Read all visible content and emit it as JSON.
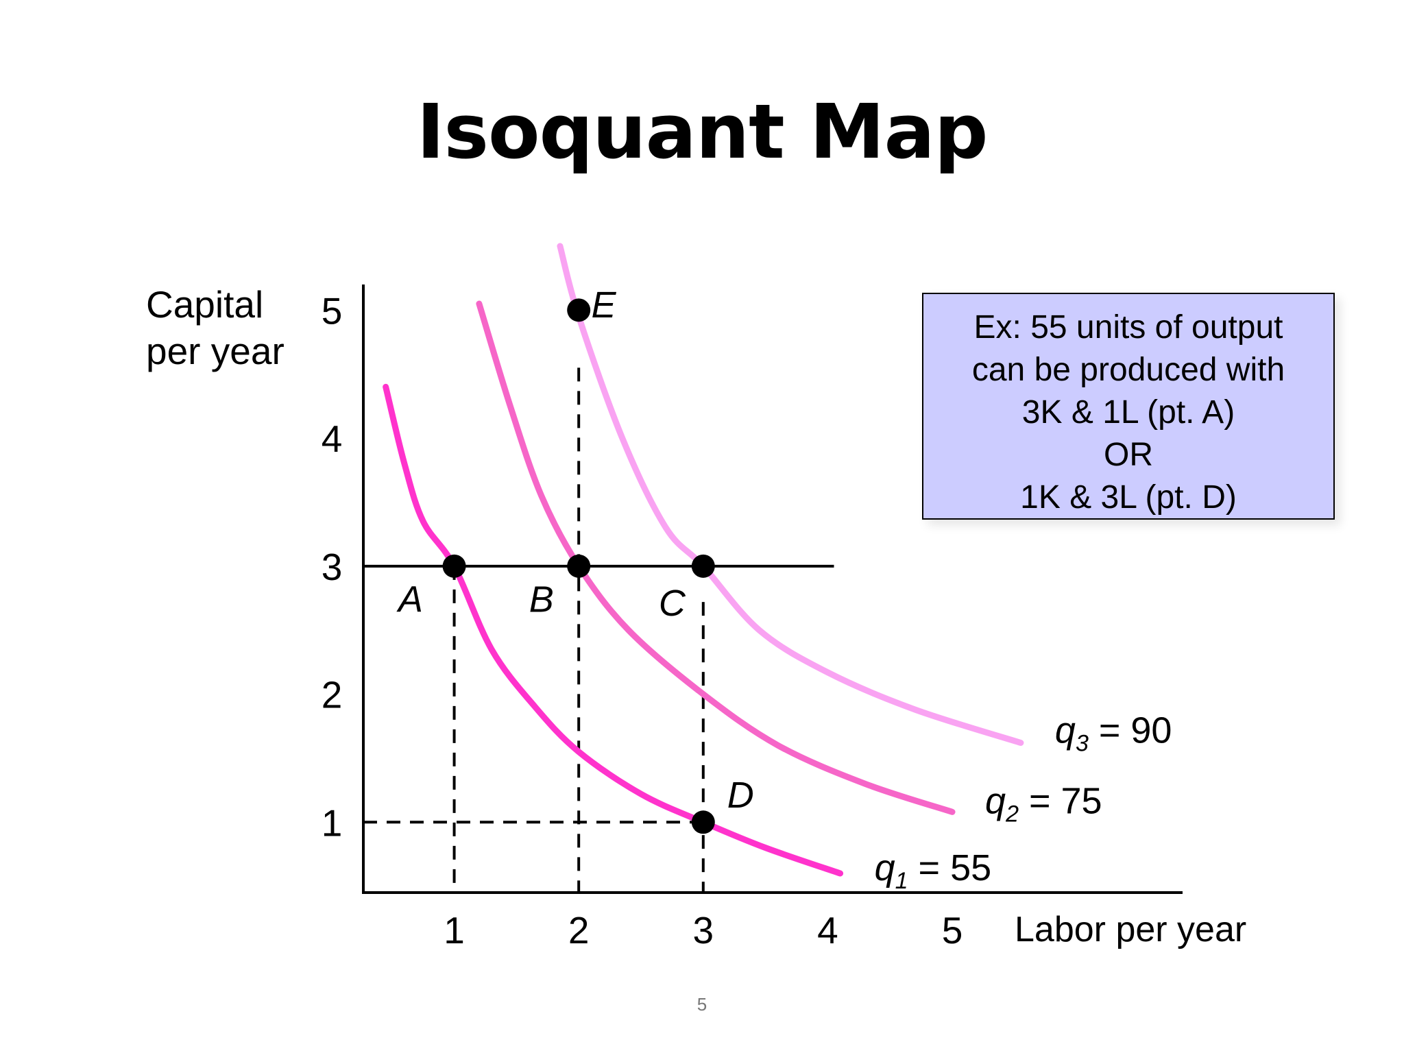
{
  "slide": {
    "title": "Isoquant Map",
    "page_number": "5",
    "note_lines": [
      "Ex: 55 units of output",
      "can be produced with",
      "3K & 1L (pt. A)",
      "OR",
      "1K & 3L (pt. D)"
    ]
  },
  "chart_data": {
    "type": "line",
    "title": "Isoquant Map",
    "xlabel": "Labor per year",
    "ylabel_lines": [
      "Capital",
      "per year"
    ],
    "xlim": [
      0.27,
      6.85
    ],
    "ylim": [
      0.45,
      5.2
    ],
    "x_ticks": [
      1,
      2,
      3,
      4,
      5
    ],
    "y_ticks": [
      1,
      2,
      3,
      4,
      5
    ],
    "grid": false,
    "legend": "inline labels at right end of each curve",
    "series": [
      {
        "name": "q1 = 55",
        "label_var": "q",
        "label_sub": "1",
        "label_rest": " = 55",
        "color": "#ff33cc",
        "points": [
          [
            0.45,
            4.4
          ],
          [
            0.6,
            3.8
          ],
          [
            0.75,
            3.35
          ],
          [
            1.0,
            3.0
          ],
          [
            1.3,
            2.35
          ],
          [
            1.65,
            1.9
          ],
          [
            2.0,
            1.55
          ],
          [
            2.5,
            1.22
          ],
          [
            3.0,
            1.0
          ],
          [
            3.5,
            0.8
          ],
          [
            4.1,
            0.6
          ]
        ]
      },
      {
        "name": "q2 = 75",
        "label_var": "q",
        "label_sub": "2",
        "label_rest": " = 75",
        "color": "#f666c8",
        "points": [
          [
            1.2,
            5.05
          ],
          [
            1.45,
            4.25
          ],
          [
            1.7,
            3.55
          ],
          [
            2.0,
            3.0
          ],
          [
            2.4,
            2.5
          ],
          [
            3.0,
            2.0
          ],
          [
            3.6,
            1.6
          ],
          [
            4.3,
            1.3
          ],
          [
            5.0,
            1.08
          ]
        ]
      },
      {
        "name": "q3 = 90",
        "label_var": "q",
        "label_sub": "3",
        "label_rest": " = 90",
        "color": "#f9a3f2",
        "points": [
          [
            1.85,
            5.5
          ],
          [
            2.0,
            4.95
          ],
          [
            2.35,
            4.0
          ],
          [
            2.7,
            3.3
          ],
          [
            3.0,
            3.0
          ],
          [
            3.45,
            2.5
          ],
          [
            4.0,
            2.17
          ],
          [
            4.7,
            1.88
          ],
          [
            5.55,
            1.62
          ]
        ]
      }
    ],
    "points": [
      {
        "label": "A",
        "x": 1,
        "y": 3,
        "lx": 0.65,
        "ly": 2.75
      },
      {
        "label": "B",
        "x": 2,
        "y": 3,
        "lx": 1.7,
        "ly": 2.75
      },
      {
        "label": "C",
        "x": 3,
        "y": 3,
        "lx": 2.75,
        "ly": 2.72
      },
      {
        "label": "D",
        "x": 3,
        "y": 1,
        "lx": 3.3,
        "ly": 1.22
      },
      {
        "label": "E",
        "x": 2,
        "y": 5,
        "lx": 2.2,
        "ly": 5.05
      }
    ],
    "reference_lines": {
      "horizontal_solid": {
        "y": 3,
        "x_from": 0,
        "x_to": 4.05
      },
      "dashed": [
        {
          "from": [
            1,
            3
          ],
          "to": [
            1,
            0.45
          ]
        },
        {
          "from": [
            2,
            4.55
          ],
          "to": [
            2,
            0.45
          ]
        },
        {
          "from": [
            3,
            2.72
          ],
          "to": [
            3,
            0.45
          ]
        },
        {
          "from": [
            0,
            1
          ],
          "to": [
            3,
            1
          ]
        }
      ]
    }
  }
}
